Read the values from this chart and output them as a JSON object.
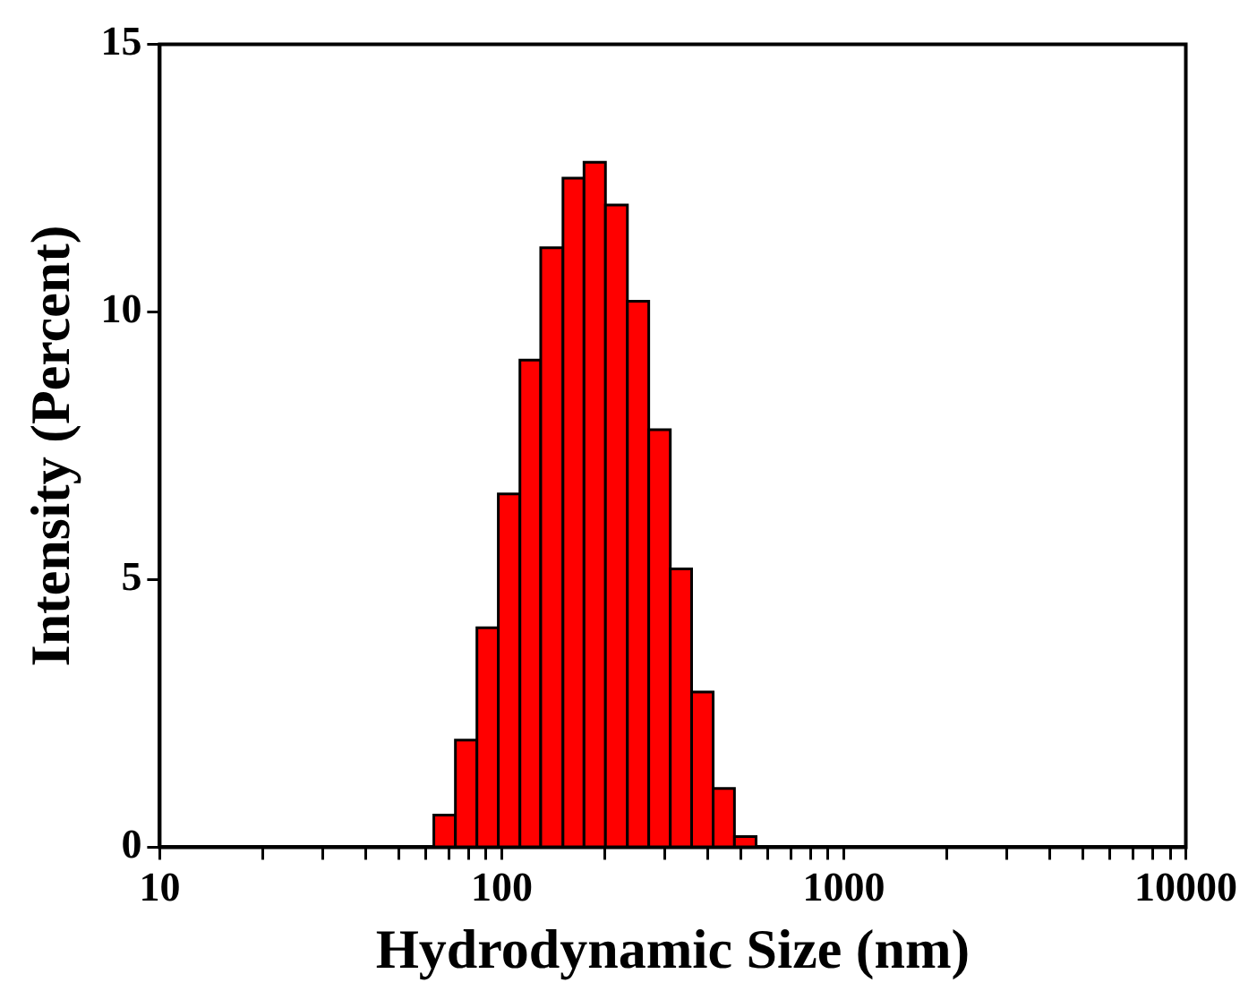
{
  "chart_data": {
    "type": "histogram",
    "xlabel": "Hydrodynamic Size (nm)",
    "ylabel": "Intensity (Percent)",
    "bins": [
      63.3,
      73.2,
      84.6,
      97.7,
      113,
      130,
      151,
      174,
      201,
      233,
      269,
      311,
      359,
      415,
      479,
      554
    ],
    "values": [
      0.6,
      2.0,
      4.1,
      6.6,
      9.1,
      11.2,
      12.5,
      12.8,
      12.0,
      10.2,
      7.8,
      5.2,
      2.9,
      1.1,
      0.2
    ],
    "color": "#ff0000",
    "log": "x",
    "xlim": [
      10,
      10000
    ],
    "xticks": [
      10,
      {
        "value": 20,
        "label": null
      },
      {
        "value": 30,
        "label": null
      },
      {
        "value": 40,
        "label": null
      },
      {
        "value": 50,
        "label": null
      },
      {
        "value": 60,
        "label": null
      },
      {
        "value": 70,
        "label": null
      },
      {
        "value": 80,
        "label": null
      },
      {
        "value": 90,
        "label": null
      },
      100,
      {
        "value": 200,
        "label": null
      },
      {
        "value": 300,
        "label": null
      },
      {
        "value": 400,
        "label": null
      },
      {
        "value": 500,
        "label": null
      },
      {
        "value": 600,
        "label": null
      },
      {
        "value": 700,
        "label": null
      },
      {
        "value": 800,
        "label": null
      },
      {
        "value": 900,
        "label": null
      },
      1000,
      {
        "value": 2000,
        "label": null
      },
      {
        "value": 3000,
        "label": null
      },
      {
        "value": 4000,
        "label": null
      },
      {
        "value": 5000,
        "label": null
      },
      {
        "value": 6000,
        "label": null
      },
      {
        "value": 7000,
        "label": null
      },
      {
        "value": 8000,
        "label": null
      },
      {
        "value": 9000,
        "label": null
      },
      10000
    ],
    "ylim": [
      0,
      15
    ],
    "yticks": [
      0,
      5,
      10,
      15
    ],
    "grid": false,
    "legend": false
  }
}
